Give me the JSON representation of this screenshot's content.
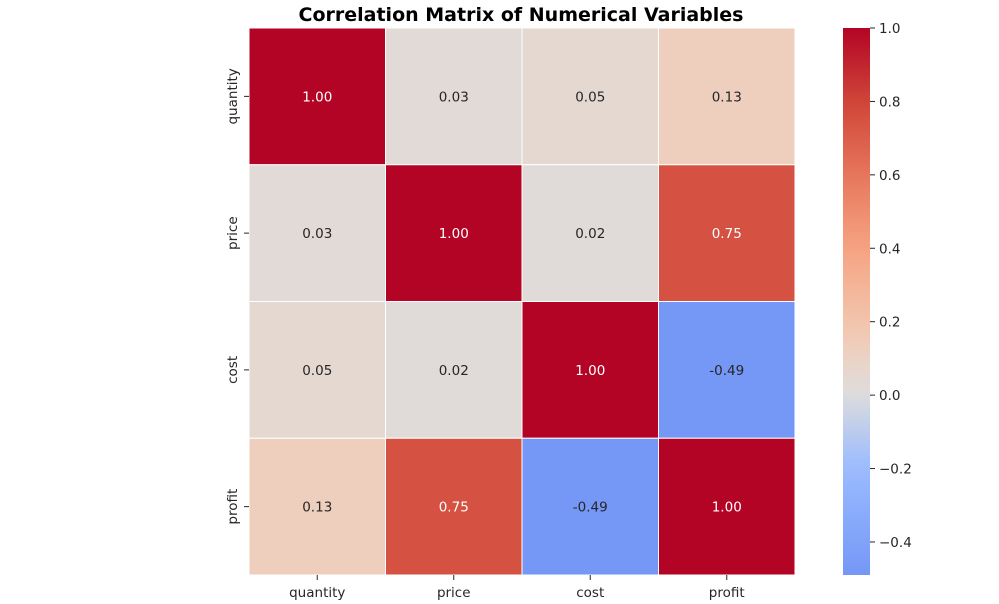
{
  "chart_data": {
    "type": "heatmap",
    "title": "Correlation Matrix of Numerical Variables",
    "x_categories": [
      "quantity",
      "price",
      "cost",
      "profit"
    ],
    "y_categories": [
      "quantity",
      "price",
      "cost",
      "profit"
    ],
    "values": [
      [
        1.0,
        0.03,
        0.05,
        0.13
      ],
      [
        0.03,
        1.0,
        0.02,
        0.75
      ],
      [
        0.05,
        0.02,
        1.0,
        -0.49
      ],
      [
        0.13,
        0.75,
        -0.49,
        1.0
      ]
    ],
    "value_format": "0.00",
    "colormap": "coolwarm",
    "color_range": [
      -0.49,
      1.0
    ],
    "colorbar": {
      "ticks": [
        1.0,
        0.8,
        0.6,
        0.4,
        0.2,
        0.0,
        -0.2,
        -0.4
      ],
      "tick_labels": [
        "1.0",
        "0.8",
        "0.6",
        "0.4",
        "0.2",
        "0.0",
        "−0.2",
        "−0.4"
      ],
      "placement": "right"
    },
    "grid": false,
    "cell_border_color": "#ffffff"
  }
}
